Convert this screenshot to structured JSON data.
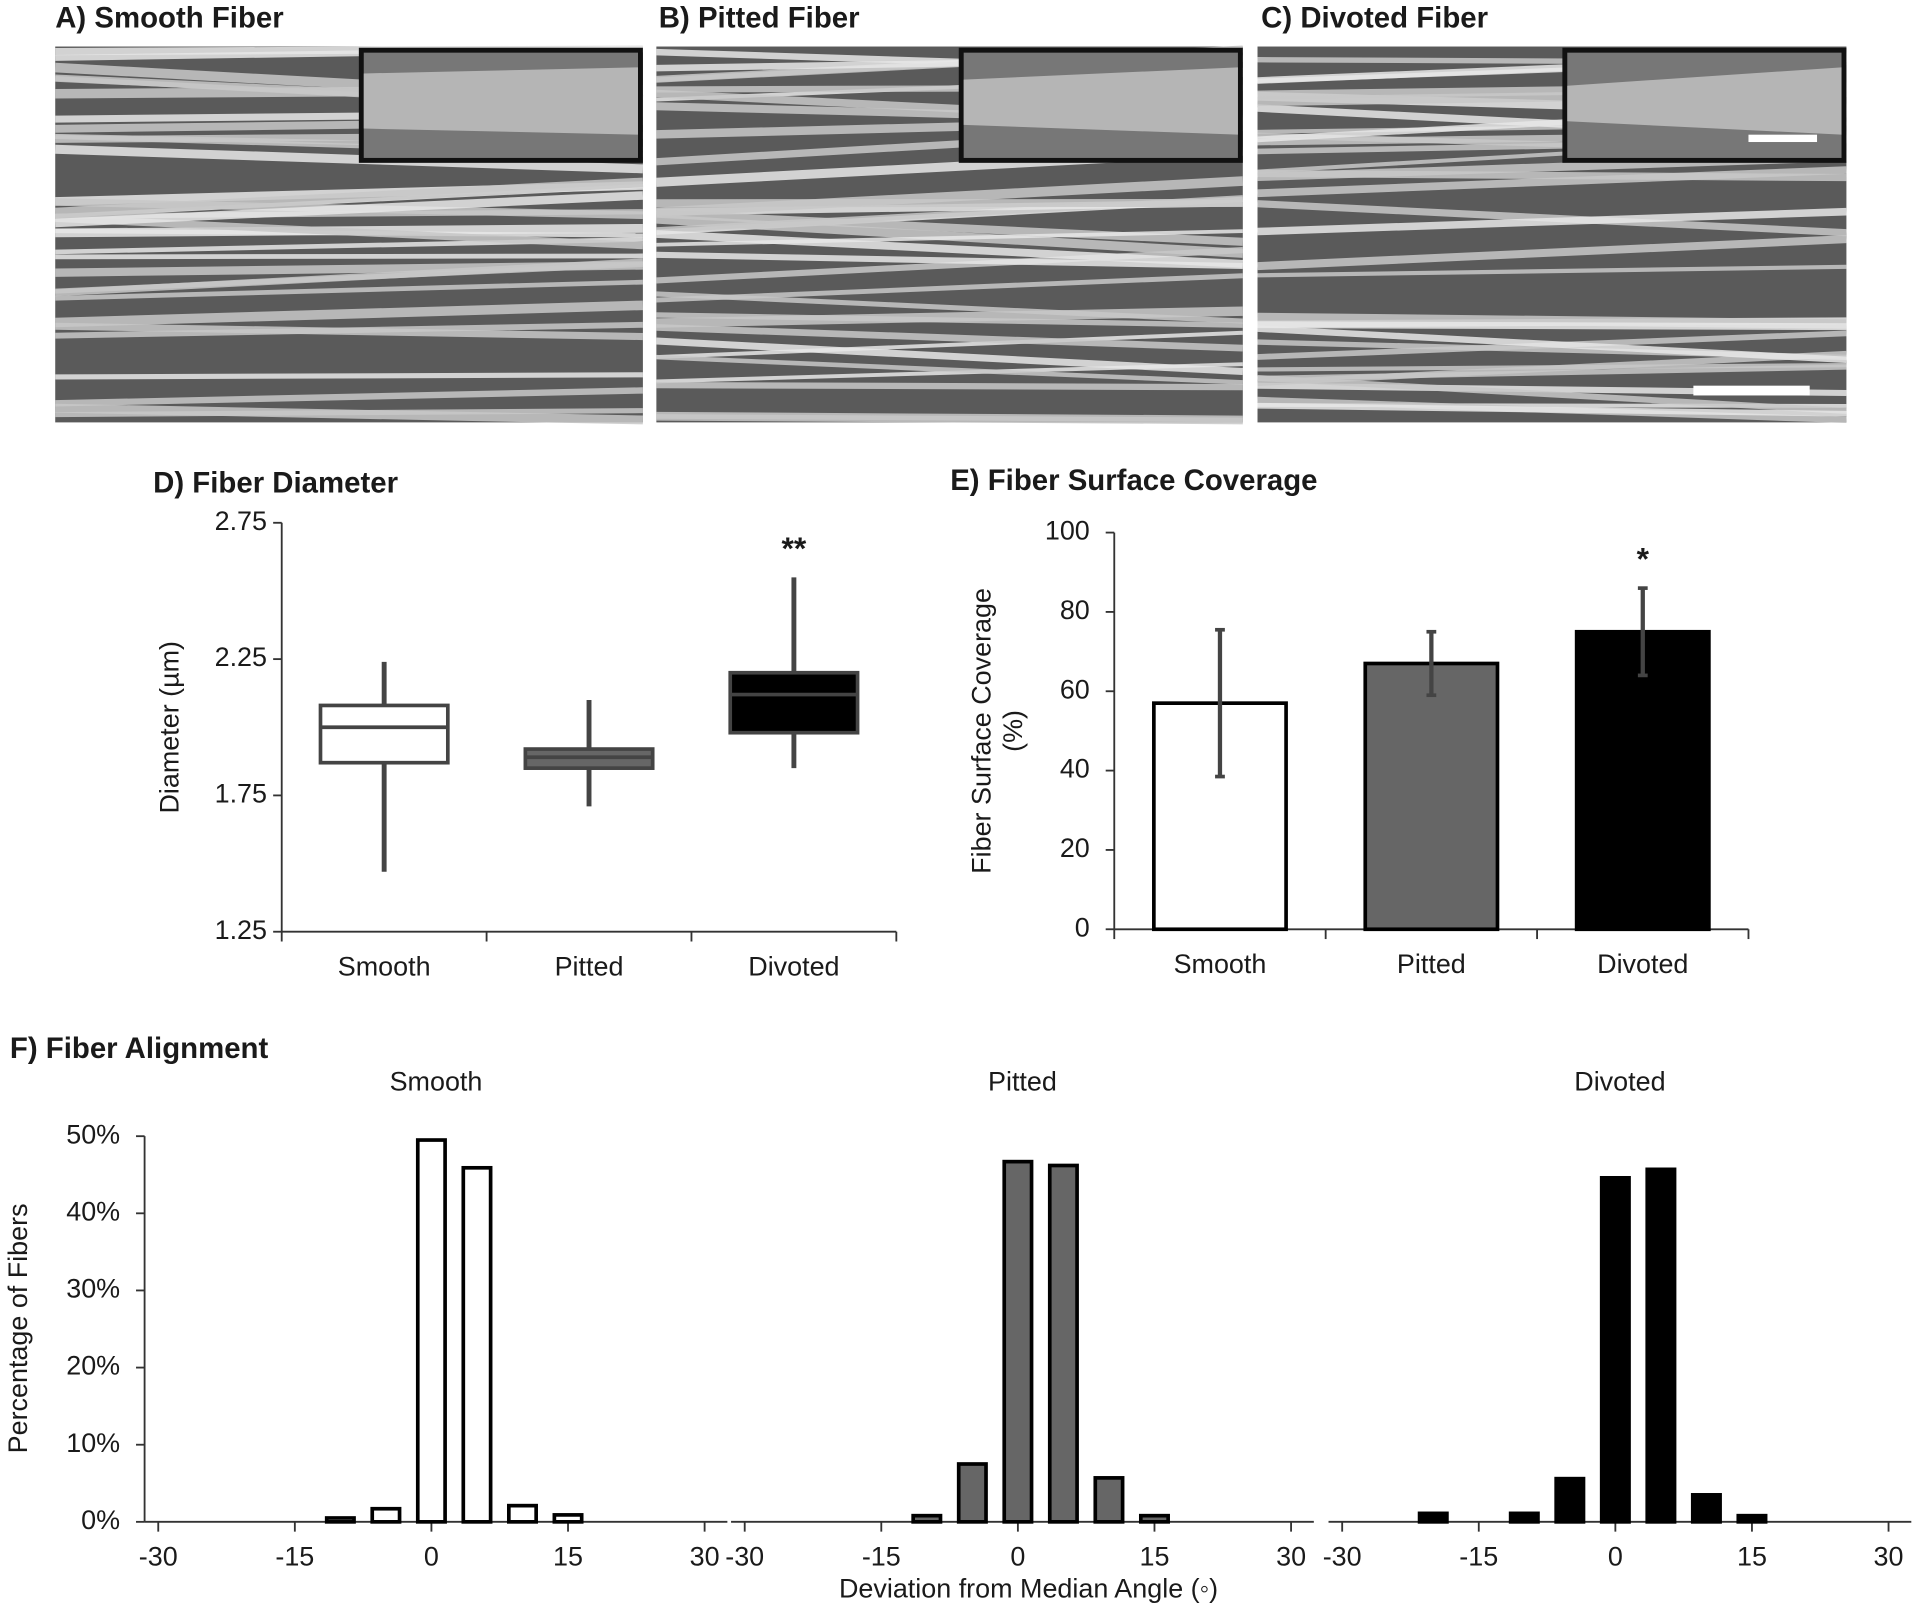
{
  "images": [
    {
      "title": "A) Smooth Fiber"
    },
    {
      "title": "B) Pitted Fiber"
    },
    {
      "title": "C) Divoted Fiber"
    }
  ],
  "panel_f": {
    "title": "F) Fiber Alignment",
    "x_label": "Deviation from Median Angle (◦)",
    "y_label": "Percentage of Fibers"
  },
  "chart_data": [
    {
      "type": "box",
      "title": "D) Fiber Diameter",
      "y_label": "Diameter (µm)",
      "categories": [
        "Smooth",
        "Pitted",
        "Divoted"
      ],
      "boxes": [
        {
          "whisker_low": 1.47,
          "q1": 1.87,
          "median": 2.0,
          "q3": 2.08,
          "whisker_high": 2.24,
          "color": "#ffffff"
        },
        {
          "whisker_low": 1.71,
          "q1": 1.85,
          "median": 1.89,
          "q3": 1.92,
          "whisker_high": 2.1,
          "color": "#666666"
        },
        {
          "whisker_low": 1.85,
          "q1": 1.98,
          "median": 2.12,
          "q3": 2.2,
          "whisker_high": 2.55,
          "color": "#000000"
        }
      ],
      "annotations": [
        {
          "text": "**",
          "category": "Divoted"
        }
      ],
      "ylim": [
        1.25,
        2.75
      ],
      "yticks": [
        1.25,
        1.75,
        2.25,
        2.75
      ]
    },
    {
      "type": "bar",
      "title": "E) Fiber Surface Coverage",
      "y_label": [
        "Fiber Surface Coverage",
        "(%)"
      ],
      "categories": [
        "Smooth",
        "Pitted",
        "Divoted"
      ],
      "values": [
        57,
        67,
        75
      ],
      "errors": [
        18.5,
        8,
        11
      ],
      "colors": [
        "#ffffff",
        "#666666",
        "#000000"
      ],
      "annotations": [
        {
          "text": "*",
          "category": "Divoted"
        }
      ],
      "ylim": [
        0,
        100
      ],
      "yticks": [
        0,
        20,
        40,
        60,
        80,
        100
      ]
    },
    {
      "type": "histogram",
      "subtitle": "Smooth",
      "color": "#ffffff",
      "x": [
        -10,
        -5,
        0,
        5,
        10,
        15
      ],
      "values": [
        0.5,
        1.7,
        49.5,
        45.9,
        2.1,
        0.9
      ],
      "xlim": [
        -31.5,
        32.5
      ],
      "xticks": [
        -30,
        -15,
        0,
        15,
        30
      ],
      "ylim": [
        0,
        50
      ],
      "yticks": [
        {
          "value": 0,
          "label": "0%"
        },
        {
          "value": 10,
          "label": "10%"
        },
        {
          "value": 20,
          "label": "20%"
        },
        {
          "value": 30,
          "label": "30%"
        },
        {
          "value": 40,
          "label": "40%"
        },
        {
          "value": 50,
          "label": "50%"
        }
      ]
    },
    {
      "type": "histogram",
      "subtitle": "Pitted",
      "color": "#666666",
      "x": [
        -10,
        -5,
        0,
        5,
        10,
        15
      ],
      "values": [
        0.8,
        7.5,
        46.7,
        46.2,
        5.7,
        0.8
      ],
      "xlim": [
        -31.5,
        32.5
      ],
      "xticks": [
        -30,
        -15,
        0,
        15,
        30
      ],
      "ylim": [
        0,
        50
      ]
    },
    {
      "type": "histogram",
      "subtitle": "Divoted",
      "color": "#000000",
      "x": [
        -20,
        -10,
        -5,
        0,
        5,
        10,
        15
      ],
      "values": [
        1.1,
        1.1,
        5.6,
        44.6,
        45.7,
        3.5,
        0.8
      ],
      "xlim": [
        -31.5,
        32.5
      ],
      "xticks": [
        -30,
        -15,
        0,
        15,
        30
      ],
      "ylim": [
        0,
        50
      ]
    }
  ]
}
